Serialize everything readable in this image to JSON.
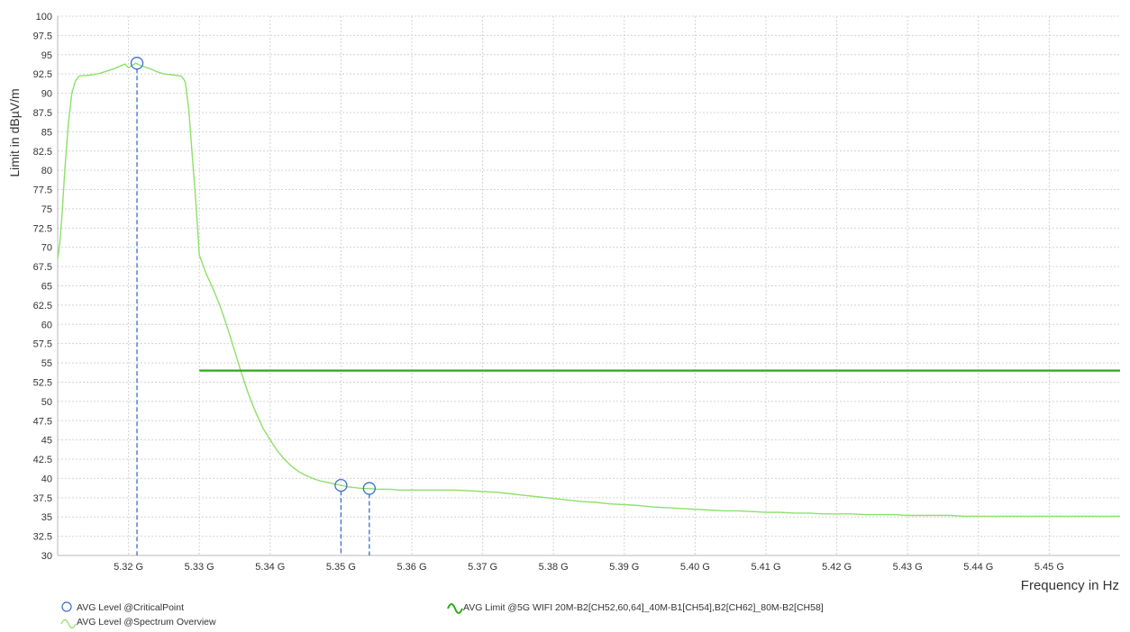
{
  "chart_data": {
    "type": "line",
    "xlabel": "Frequency in Hz",
    "ylabel": "Limit in dBµV/m",
    "xlim": [
      5.31,
      5.46
    ],
    "ylim": [
      30,
      100
    ],
    "grid": true,
    "yticks": [
      "30",
      "32.5",
      "35",
      "37.5",
      "40",
      "42.5",
      "45",
      "47.5",
      "50",
      "52.5",
      "55",
      "57.5",
      "60",
      "62.5",
      "65",
      "67.5",
      "70",
      "72.5",
      "75",
      "77.5",
      "80",
      "82.5",
      "85",
      "87.5",
      "90",
      "92.5",
      "95",
      "97.5",
      "100"
    ],
    "xticks": [
      {
        "value": 5.32,
        "label": "5.32 G"
      },
      {
        "value": 5.33,
        "label": "5.33 G"
      },
      {
        "value": 5.34,
        "label": "5.34 G"
      },
      {
        "value": 5.35,
        "label": "5.35 G"
      },
      {
        "value": 5.36,
        "label": "5.36 G"
      },
      {
        "value": 5.37,
        "label": "5.37 G"
      },
      {
        "value": 5.38,
        "label": "5.38 G"
      },
      {
        "value": 5.39,
        "label": "5.39 G"
      },
      {
        "value": 5.4,
        "label": "5.40 G"
      },
      {
        "value": 5.41,
        "label": "5.41 G"
      },
      {
        "value": 5.42,
        "label": "5.42 G"
      },
      {
        "value": 5.43,
        "label": "5.43 G"
      },
      {
        "value": 5.44,
        "label": "5.44 G"
      },
      {
        "value": 5.45,
        "label": "5.45 G"
      }
    ],
    "series": [
      {
        "name": "AVG Level @Spectrum Overview",
        "color": "#8ee06a",
        "x": [
          5.31,
          5.3103,
          5.3106,
          5.311,
          5.3115,
          5.312,
          5.3125,
          5.313,
          5.3135,
          5.314,
          5.315,
          5.316,
          5.317,
          5.318,
          5.319,
          5.3195,
          5.32,
          5.3205,
          5.321,
          5.3215,
          5.322,
          5.323,
          5.324,
          5.325,
          5.326,
          5.327,
          5.3275,
          5.328,
          5.3285,
          5.329,
          5.3295,
          5.33,
          5.331,
          5.332,
          5.333,
          5.334,
          5.335,
          5.336,
          5.337,
          5.338,
          5.339,
          5.34,
          5.341,
          5.342,
          5.343,
          5.344,
          5.345,
          5.346,
          5.347,
          5.348,
          5.349,
          5.35,
          5.351,
          5.352,
          5.353,
          5.354,
          5.355,
          5.356,
          5.357,
          5.358,
          5.36,
          5.362,
          5.364,
          5.366,
          5.368,
          5.37,
          5.372,
          5.374,
          5.376,
          5.378,
          5.38,
          5.382,
          5.384,
          5.386,
          5.388,
          5.39,
          5.392,
          5.394,
          5.396,
          5.398,
          5.4,
          5.402,
          5.404,
          5.406,
          5.408,
          5.41,
          5.412,
          5.414,
          5.416,
          5.418,
          5.42,
          5.422,
          5.424,
          5.426,
          5.428,
          5.43,
          5.432,
          5.434,
          5.436,
          5.438,
          5.44,
          5.442,
          5.444,
          5.446,
          5.448,
          5.45,
          5.452,
          5.454,
          5.456,
          5.458,
          5.46
        ],
        "y": [
          68.5,
          70.5,
          74,
          80,
          86,
          90,
          91.6,
          92.2,
          92.3,
          92.3,
          92.4,
          92.6,
          92.9,
          93.2,
          93.6,
          93.8,
          93.3,
          93.6,
          93.9,
          93.7,
          93.5,
          93.2,
          92.8,
          92.5,
          92.4,
          92.3,
          92.2,
          91.5,
          88,
          82,
          76,
          69,
          66.5,
          64.5,
          62.2,
          59.5,
          56.5,
          53.5,
          50.8,
          48.5,
          46.5,
          45,
          43.6,
          42.5,
          41.6,
          40.9,
          40.4,
          40,
          39.7,
          39.5,
          39.3,
          39.1,
          38.9,
          38.8,
          38.7,
          38.7,
          38.6,
          38.6,
          38.6,
          38.5,
          38.5,
          38.5,
          38.5,
          38.5,
          38.4,
          38.3,
          38.2,
          38.0,
          37.8,
          37.6,
          37.4,
          37.2,
          37.0,
          36.9,
          36.7,
          36.6,
          36.5,
          36.3,
          36.2,
          36.1,
          36.0,
          35.9,
          35.8,
          35.8,
          35.7,
          35.6,
          35.6,
          35.5,
          35.5,
          35.4,
          35.4,
          35.4,
          35.3,
          35.3,
          35.3,
          35.2,
          35.2,
          35.2,
          35.2,
          35.1,
          35.1,
          35.1,
          35.1,
          35.1,
          35.1,
          35.1,
          35.1,
          35.1,
          35.1,
          35.1,
          35.1
        ]
      },
      {
        "name": "AVG Limit @5G WIFI  20M-B2[CH52,60,64]_40M-B1[CH54],B2[CH62]_80M-B2[CH58]",
        "color": "#2ea81a",
        "x": [
          5.33,
          5.46
        ],
        "y": [
          54,
          54
        ]
      }
    ],
    "critical_points": {
      "name": "AVG Level @CriticalPoint",
      "color": "#3a6fc9",
      "points": [
        {
          "x": 5.3212,
          "y": 93.9
        },
        {
          "x": 5.35,
          "y": 39.1
        },
        {
          "x": 5.354,
          "y": 38.7
        }
      ]
    },
    "legend": {
      "placement": "bottom",
      "items": [
        {
          "label": "AVG Level @CriticalPoint",
          "icon": "circle-marker-icon"
        },
        {
          "label": "AVG Level @Spectrum Overview",
          "icon": "light-green-wave-icon"
        },
        {
          "label": "AVG Limit @5G WIFI  20M-B2[CH52,60,64]_40M-B1[CH54],B2[CH62]_80M-B2[CH58]",
          "icon": "dark-green-wave-icon"
        }
      ]
    }
  }
}
